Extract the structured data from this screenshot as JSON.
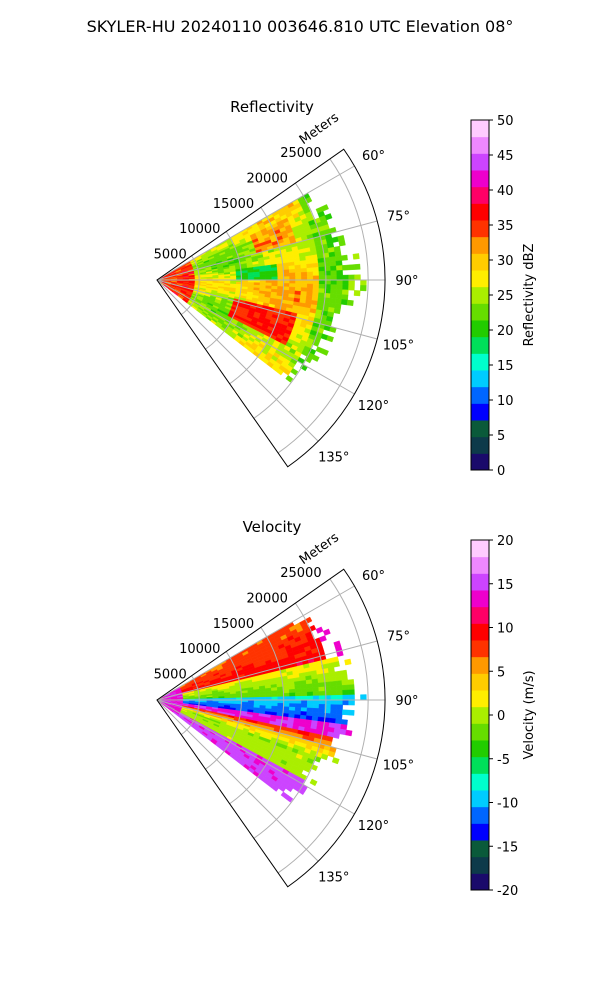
{
  "figure": {
    "title": "SKYLER-HU  20240110  003646.810 UTC Elevation 08°"
  },
  "chart_data": [
    {
      "type": "heatmap",
      "projection": "polar-sector",
      "title": "Reflectivity",
      "radial_label": "Meters",
      "radial_ticks": [
        5000,
        10000,
        15000,
        20000,
        25000
      ],
      "r_max": 27000,
      "azimuth_range_deg": [
        55,
        145
      ],
      "azimuth_ticks_deg": [
        60,
        75,
        90,
        105,
        120,
        135
      ],
      "grid": true,
      "colorbar": {
        "label": "Reflectivity dBZ",
        "range": [
          0,
          50
        ],
        "ticks": [
          0,
          5,
          10,
          15,
          20,
          25,
          30,
          35,
          40,
          45,
          50
        ],
        "colors": [
          "#1a0a6b",
          "#0d3a4a",
          "#0a5a3a",
          "#0000ff",
          "#0066ff",
          "#00ccff",
          "#00ffcc",
          "#00e05a",
          "#22cc00",
          "#66dd00",
          "#aaee00",
          "#ffee00",
          "#ffcc00",
          "#ff9900",
          "#ff3300",
          "#ff0000",
          "#ff0066",
          "#ee00cc",
          "#cc44ff",
          "#ee88ff",
          "#ffccff"
        ]
      },
      "data_extent_deg": [
        60,
        127
      ],
      "data_max_range": 24500,
      "dominant_values": "mostly 20–35 dBZ, red cores near 35–40 dBZ"
    },
    {
      "type": "heatmap",
      "projection": "polar-sector",
      "title": "Velocity",
      "radial_label": "Meters",
      "radial_ticks": [
        5000,
        10000,
        15000,
        20000,
        25000
      ],
      "r_max": 27000,
      "azimuth_range_deg": [
        55,
        145
      ],
      "azimuth_ticks_deg": [
        60,
        75,
        90,
        105,
        120,
        135
      ],
      "grid": true,
      "colorbar": {
        "label": "Velocity (m/s)",
        "range": [
          -20,
          20
        ],
        "ticks": [
          -20,
          -15,
          -10,
          -5,
          0,
          5,
          10,
          15,
          20
        ],
        "colors": [
          "#1a0a6b",
          "#0d3a4a",
          "#0a5a3a",
          "#0000ff",
          "#0066ff",
          "#00ccff",
          "#00ffcc",
          "#00e05a",
          "#22cc00",
          "#66dd00",
          "#aaee00",
          "#ffee00",
          "#ffcc00",
          "#ff9900",
          "#ff3300",
          "#ff0000",
          "#ff0066",
          "#ee00cc",
          "#cc44ff",
          "#ee88ff",
          "#ffccff"
        ]
      },
      "data_extent_deg": [
        60,
        127
      ],
      "data_max_range": 24500
    }
  ]
}
